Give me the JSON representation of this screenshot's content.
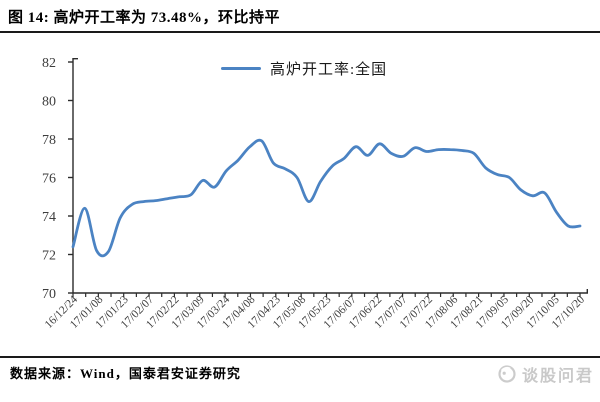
{
  "header": {
    "title": "图 14: 高炉开工率为 73.48%，环比持平"
  },
  "legend": {
    "label": "高炉开工率:全国"
  },
  "footer": {
    "source": "数据来源：Wind，国泰君安证券研究",
    "watermark": "谈股问君"
  },
  "colors": {
    "line": "#4b83c3",
    "axis": "#2b2b2b",
    "tick_text": "#3d3d3d",
    "rule": "#1a1a1a",
    "watermark": "#c9c9c9"
  },
  "chart_data": {
    "type": "line",
    "title": "图 14: 高炉开工率为 73.48%，环比持平",
    "legend_entries": [
      "高炉开工率:全国"
    ],
    "legend_position": "top-center",
    "grid": false,
    "unit": "%",
    "ylim": [
      70,
      82
    ],
    "y_ticks": [
      70,
      72,
      74,
      76,
      78,
      80,
      82
    ],
    "x_tick_labels": [
      "16/12/24",
      "17/01/08",
      "17/01/23",
      "17/02/07",
      "17/02/22",
      "17/03/09",
      "17/03/24",
      "17/04/08",
      "17/04/23",
      "17/05/08",
      "17/05/23",
      "17/06/07",
      "17/06/22",
      "17/07/07",
      "17/07/22",
      "17/08/06",
      "17/08/21",
      "17/09/05",
      "17/09/20",
      "17/10/05",
      "17/10/20"
    ],
    "x_dates": [
      "16/12/24",
      "16/12/31",
      "17/01/07",
      "17/01/14",
      "17/01/21",
      "17/01/28",
      "17/02/04",
      "17/02/11",
      "17/02/18",
      "17/02/25",
      "17/03/04",
      "17/03/11",
      "17/03/18",
      "17/03/25",
      "17/04/01",
      "17/04/08",
      "17/04/15",
      "17/04/22",
      "17/04/29",
      "17/05/06",
      "17/05/13",
      "17/05/20",
      "17/05/27",
      "17/06/03",
      "17/06/10",
      "17/06/17",
      "17/06/24",
      "17/07/01",
      "17/07/08",
      "17/07/15",
      "17/07/22",
      "17/07/29",
      "17/08/05",
      "17/08/12",
      "17/08/19",
      "17/08/26",
      "17/09/02",
      "17/09/09",
      "17/09/16",
      "17/09/23",
      "17/09/30",
      "17/10/07",
      "17/10/14",
      "17/10/20"
    ],
    "series": [
      {
        "name": "高炉开工率:全国",
        "color": "#4b83c3",
        "values": [
          72.4,
          74.4,
          72.2,
          72.15,
          73.9,
          74.6,
          74.75,
          74.8,
          74.9,
          75.0,
          75.1,
          75.85,
          75.5,
          76.35,
          76.9,
          77.6,
          77.9,
          76.75,
          76.45,
          76.0,
          74.75,
          75.8,
          76.6,
          77.0,
          77.6,
          77.15,
          77.75,
          77.25,
          77.1,
          77.55,
          77.35,
          77.45,
          77.45,
          77.4,
          77.25,
          76.5,
          76.15,
          76.0,
          75.35,
          75.05,
          75.2,
          74.2,
          73.48,
          73.48
        ]
      }
    ],
    "latest_value": 73.48,
    "wow_change": "环比持平"
  }
}
